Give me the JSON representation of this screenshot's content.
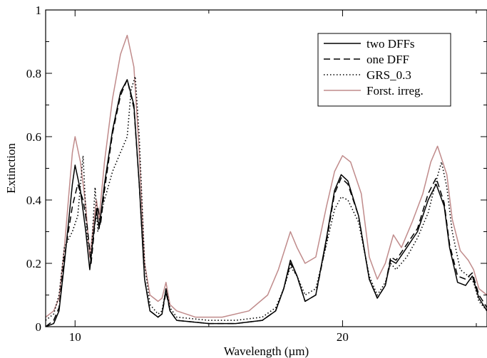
{
  "chart_data": {
    "type": "line",
    "xlabel": "Wavelength (µm)",
    "ylabel": "Extinction",
    "xlim": [
      8.9,
      25.4
    ],
    "ylim": [
      0,
      1
    ],
    "x_ticks": [
      10,
      20
    ],
    "y_ticks": [
      0,
      0.2,
      0.4,
      0.6,
      0.8,
      1
    ],
    "x_tick_labels": [
      "10",
      "20"
    ],
    "y_tick_labels": [
      "0",
      "0.2",
      "0.4",
      "0.6",
      "0.8",
      "1"
    ],
    "grid": false,
    "legend_position": "top-right",
    "series": [
      {
        "name": "two DFFs",
        "color": "#000000",
        "dash": "solid",
        "points": [
          [
            8.9,
            0.0
          ],
          [
            9.2,
            0.01
          ],
          [
            9.4,
            0.05
          ],
          [
            9.6,
            0.2
          ],
          [
            9.9,
            0.45
          ],
          [
            10.0,
            0.51
          ],
          [
            10.2,
            0.43
          ],
          [
            10.4,
            0.3
          ],
          [
            10.55,
            0.18
          ],
          [
            10.7,
            0.3
          ],
          [
            10.8,
            0.37
          ],
          [
            10.9,
            0.31
          ],
          [
            11.1,
            0.45
          ],
          [
            11.4,
            0.62
          ],
          [
            11.7,
            0.74
          ],
          [
            11.95,
            0.78
          ],
          [
            12.2,
            0.7
          ],
          [
            12.4,
            0.45
          ],
          [
            12.6,
            0.15
          ],
          [
            12.8,
            0.05
          ],
          [
            13.1,
            0.03
          ],
          [
            13.25,
            0.04
          ],
          [
            13.4,
            0.12
          ],
          [
            13.55,
            0.05
          ],
          [
            13.8,
            0.02
          ],
          [
            15.0,
            0.01
          ],
          [
            16.0,
            0.01
          ],
          [
            17.0,
            0.02
          ],
          [
            17.5,
            0.05
          ],
          [
            17.8,
            0.12
          ],
          [
            18.05,
            0.21
          ],
          [
            18.3,
            0.16
          ],
          [
            18.6,
            0.08
          ],
          [
            19.0,
            0.1
          ],
          [
            19.4,
            0.28
          ],
          [
            19.7,
            0.43
          ],
          [
            19.95,
            0.48
          ],
          [
            20.2,
            0.46
          ],
          [
            20.6,
            0.35
          ],
          [
            21.0,
            0.15
          ],
          [
            21.3,
            0.09
          ],
          [
            21.6,
            0.13
          ],
          [
            21.8,
            0.21
          ],
          [
            22.0,
            0.2
          ],
          [
            22.4,
            0.25
          ],
          [
            22.8,
            0.3
          ],
          [
            23.2,
            0.4
          ],
          [
            23.5,
            0.45
          ],
          [
            23.8,
            0.38
          ],
          [
            24.0,
            0.25
          ],
          [
            24.3,
            0.14
          ],
          [
            24.6,
            0.13
          ],
          [
            24.85,
            0.16
          ],
          [
            25.1,
            0.09
          ],
          [
            25.4,
            0.05
          ]
        ]
      },
      {
        "name": "one DFF",
        "color": "#000000",
        "dash": "dashed",
        "points": [
          [
            8.9,
            0.0
          ],
          [
            9.2,
            0.02
          ],
          [
            9.4,
            0.06
          ],
          [
            9.6,
            0.22
          ],
          [
            9.9,
            0.38
          ],
          [
            10.1,
            0.45
          ],
          [
            10.3,
            0.4
          ],
          [
            10.45,
            0.32
          ],
          [
            10.6,
            0.2
          ],
          [
            10.75,
            0.33
          ],
          [
            10.85,
            0.38
          ],
          [
            10.95,
            0.32
          ],
          [
            11.1,
            0.43
          ],
          [
            11.4,
            0.61
          ],
          [
            11.7,
            0.73
          ],
          [
            11.95,
            0.78
          ],
          [
            12.2,
            0.69
          ],
          [
            12.4,
            0.45
          ],
          [
            12.6,
            0.15
          ],
          [
            12.8,
            0.05
          ],
          [
            13.1,
            0.03
          ],
          [
            13.25,
            0.04
          ],
          [
            13.4,
            0.11
          ],
          [
            13.55,
            0.05
          ],
          [
            13.8,
            0.02
          ],
          [
            15.0,
            0.01
          ],
          [
            16.0,
            0.01
          ],
          [
            17.0,
            0.02
          ],
          [
            17.5,
            0.05
          ],
          [
            17.8,
            0.12
          ],
          [
            18.05,
            0.2
          ],
          [
            18.3,
            0.16
          ],
          [
            18.6,
            0.08
          ],
          [
            19.0,
            0.1
          ],
          [
            19.4,
            0.27
          ],
          [
            19.7,
            0.42
          ],
          [
            19.95,
            0.47
          ],
          [
            20.2,
            0.45
          ],
          [
            20.6,
            0.35
          ],
          [
            21.0,
            0.15
          ],
          [
            21.3,
            0.09
          ],
          [
            21.6,
            0.13
          ],
          [
            21.8,
            0.22
          ],
          [
            22.0,
            0.21
          ],
          [
            22.4,
            0.26
          ],
          [
            22.8,
            0.31
          ],
          [
            23.2,
            0.42
          ],
          [
            23.5,
            0.47
          ],
          [
            23.8,
            0.39
          ],
          [
            24.0,
            0.26
          ],
          [
            24.3,
            0.16
          ],
          [
            24.6,
            0.15
          ],
          [
            24.85,
            0.17
          ],
          [
            25.1,
            0.1
          ],
          [
            25.4,
            0.06
          ]
        ]
      },
      {
        "name": "GRS_0.3",
        "color": "#000000",
        "dash": "dotted",
        "points": [
          [
            8.9,
            0.02
          ],
          [
            9.2,
            0.04
          ],
          [
            9.4,
            0.1
          ],
          [
            9.6,
            0.25
          ],
          [
            9.9,
            0.3
          ],
          [
            10.1,
            0.35
          ],
          [
            10.3,
            0.54
          ],
          [
            10.45,
            0.28
          ],
          [
            10.6,
            0.22
          ],
          [
            10.75,
            0.44
          ],
          [
            10.85,
            0.3
          ],
          [
            10.95,
            0.35
          ],
          [
            11.1,
            0.4
          ],
          [
            11.4,
            0.49
          ],
          [
            11.7,
            0.55
          ],
          [
            11.95,
            0.6
          ],
          [
            12.1,
            0.75
          ],
          [
            12.25,
            0.79
          ],
          [
            12.4,
            0.6
          ],
          [
            12.6,
            0.2
          ],
          [
            12.8,
            0.07
          ],
          [
            13.1,
            0.04
          ],
          [
            13.25,
            0.05
          ],
          [
            13.4,
            0.12
          ],
          [
            13.55,
            0.06
          ],
          [
            13.8,
            0.03
          ],
          [
            15.0,
            0.02
          ],
          [
            16.0,
            0.02
          ],
          [
            17.0,
            0.03
          ],
          [
            17.5,
            0.06
          ],
          [
            17.8,
            0.12
          ],
          [
            18.05,
            0.19
          ],
          [
            18.3,
            0.16
          ],
          [
            18.6,
            0.1
          ],
          [
            19.0,
            0.12
          ],
          [
            19.4,
            0.26
          ],
          [
            19.7,
            0.37
          ],
          [
            19.95,
            0.41
          ],
          [
            20.2,
            0.4
          ],
          [
            20.6,
            0.33
          ],
          [
            21.0,
            0.16
          ],
          [
            21.3,
            0.1
          ],
          [
            21.6,
            0.14
          ],
          [
            21.8,
            0.2
          ],
          [
            22.0,
            0.18
          ],
          [
            22.4,
            0.22
          ],
          [
            22.8,
            0.28
          ],
          [
            23.2,
            0.36
          ],
          [
            23.5,
            0.46
          ],
          [
            23.7,
            0.52
          ],
          [
            23.9,
            0.44
          ],
          [
            24.1,
            0.3
          ],
          [
            24.4,
            0.18
          ],
          [
            24.7,
            0.16
          ],
          [
            24.9,
            0.14
          ],
          [
            25.1,
            0.08
          ],
          [
            25.4,
            0.05
          ]
        ]
      },
      {
        "name": "Forst. irreg.",
        "color": "#c08b8b",
        "dash": "solid",
        "points": [
          [
            8.9,
            0.03
          ],
          [
            9.2,
            0.05
          ],
          [
            9.4,
            0.09
          ],
          [
            9.6,
            0.25
          ],
          [
            9.9,
            0.55
          ],
          [
            10.0,
            0.6
          ],
          [
            10.2,
            0.52
          ],
          [
            10.4,
            0.38
          ],
          [
            10.55,
            0.22
          ],
          [
            10.7,
            0.33
          ],
          [
            10.8,
            0.4
          ],
          [
            10.9,
            0.34
          ],
          [
            11.1,
            0.52
          ],
          [
            11.4,
            0.72
          ],
          [
            11.7,
            0.86
          ],
          [
            11.95,
            0.92
          ],
          [
            12.2,
            0.82
          ],
          [
            12.4,
            0.55
          ],
          [
            12.6,
            0.2
          ],
          [
            12.8,
            0.1
          ],
          [
            13.1,
            0.08
          ],
          [
            13.25,
            0.09
          ],
          [
            13.4,
            0.14
          ],
          [
            13.55,
            0.07
          ],
          [
            13.8,
            0.05
          ],
          [
            14.5,
            0.03
          ],
          [
            15.5,
            0.03
          ],
          [
            16.5,
            0.05
          ],
          [
            17.2,
            0.1
          ],
          [
            17.6,
            0.18
          ],
          [
            18.05,
            0.3
          ],
          [
            18.3,
            0.25
          ],
          [
            18.6,
            0.2
          ],
          [
            19.0,
            0.22
          ],
          [
            19.4,
            0.38
          ],
          [
            19.7,
            0.49
          ],
          [
            20.0,
            0.54
          ],
          [
            20.3,
            0.52
          ],
          [
            20.7,
            0.42
          ],
          [
            21.0,
            0.22
          ],
          [
            21.3,
            0.15
          ],
          [
            21.6,
            0.2
          ],
          [
            21.9,
            0.29
          ],
          [
            22.2,
            0.25
          ],
          [
            22.6,
            0.33
          ],
          [
            23.0,
            0.42
          ],
          [
            23.3,
            0.52
          ],
          [
            23.55,
            0.57
          ],
          [
            23.9,
            0.48
          ],
          [
            24.1,
            0.34
          ],
          [
            24.4,
            0.24
          ],
          [
            24.7,
            0.21
          ],
          [
            24.9,
            0.18
          ],
          [
            25.1,
            0.12
          ],
          [
            25.4,
            0.1
          ]
        ]
      }
    ]
  }
}
